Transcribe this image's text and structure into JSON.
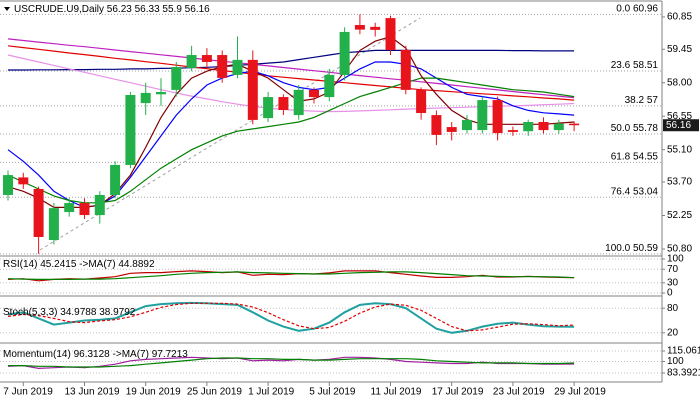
{
  "chart_data": [
    {
      "type": "candlestick",
      "title": "USCRUDE.U9,Daily",
      "categories": [
        null,
        "7 Jun 2019",
        null,
        null,
        null,
        "13 Jun 2019",
        null,
        null,
        null,
        "19 Jun 2019",
        null,
        null,
        null,
        "25 Jun 2019",
        null,
        null,
        null,
        "1 Jul 2019",
        null,
        null,
        null,
        "5 Jul 2019",
        null,
        null,
        null,
        "11 Jul 2019",
        null,
        null,
        null,
        "17 Jul 2019",
        null,
        null,
        null,
        "23 Jul 2019",
        null,
        null,
        null,
        "29 Jul 2019"
      ],
      "open": [
        53.14,
        53.9,
        53.4,
        51.19,
        52.4,
        52.79,
        52.27,
        53.14,
        54.44,
        57.12,
        57.5,
        57.69,
        58.64,
        59.2,
        59.2,
        58.34,
        58.99,
        56.47,
        57.38,
        56.6,
        57.69,
        57.38,
        58.34,
        60.5,
        60.42,
        60.8,
        59.42,
        57.69,
        56.6,
        56.08,
        55.95,
        55.95,
        57.25,
        55.95,
        55.9,
        56.3,
        55.95,
        56.23
      ],
      "high": [
        54.2,
        54.1,
        53.5,
        52.8,
        53.0,
        53.0,
        53.3,
        54.6,
        57.6,
        58.0,
        58.2,
        58.9,
        59.6,
        59.5,
        59.4,
        60.0,
        59.4,
        57.6,
        57.5,
        57.9,
        57.8,
        58.6,
        60.4,
        60.96,
        60.6,
        60.9,
        59.6,
        57.8,
        56.8,
        56.3,
        56.6,
        57.4,
        57.4,
        56.1,
        56.4,
        56.5,
        56.4,
        56.33
      ],
      "low": [
        52.9,
        53.4,
        50.59,
        51.0,
        52.2,
        52.1,
        51.9,
        53.0,
        54.3,
        56.6,
        57.0,
        57.4,
        58.5,
        58.6,
        58.0,
        58.2,
        56.2,
        56.3,
        56.6,
        56.4,
        57.1,
        57.2,
        58.1,
        60.1,
        60.0,
        59.2,
        57.5,
        56.4,
        55.3,
        55.5,
        55.8,
        55.8,
        55.5,
        55.7,
        55.7,
        55.8,
        55.8,
        55.9
      ],
      "close": [
        54.0,
        53.6,
        51.32,
        52.57,
        52.79,
        52.27,
        53.14,
        54.44,
        57.47,
        57.56,
        57.6,
        58.68,
        59.2,
        58.9,
        58.21,
        58.99,
        56.39,
        57.38,
        56.82,
        57.69,
        57.38,
        58.34,
        60.2,
        60.3,
        60.29,
        59.42,
        57.69,
        56.69,
        55.74,
        55.87,
        56.39,
        57.25,
        55.82,
        55.87,
        56.3,
        55.95,
        56.23,
        56.16
      ],
      "up_color": "#22b04a",
      "down_color": "#e8141b",
      "series": [
        {
          "color": "#000080",
          "values": [
            58.55,
            58.55,
            58.56,
            58.56,
            58.57,
            58.57,
            58.58,
            58.58,
            58.6,
            58.6,
            58.62,
            58.63,
            58.65,
            58.67,
            58.7,
            58.75,
            58.8,
            58.85,
            58.9,
            59.0,
            59.1,
            59.2,
            59.3,
            59.35,
            59.4,
            59.4,
            59.4,
            59.4,
            59.4,
            59.4,
            59.4,
            59.4,
            59.4,
            59.39,
            59.39,
            59.38,
            59.38,
            59.38
          ]
        },
        {
          "color": "#e00000",
          "values": [
            59.6,
            59.52,
            59.45,
            59.37,
            59.29,
            59.22,
            59.14,
            59.06,
            58.99,
            58.91,
            58.84,
            58.76,
            58.68,
            58.61,
            58.53,
            58.45,
            58.38,
            58.3,
            58.24,
            58.18,
            58.12,
            58.06,
            58.0,
            57.94,
            57.88,
            57.82,
            57.76,
            57.7,
            57.66,
            57.61,
            57.57,
            57.52,
            57.48,
            57.43,
            57.39,
            57.34,
            57.3,
            57.25
          ]
        },
        {
          "color": "#c020c0",
          "values": [
            59.9,
            59.83,
            59.76,
            59.69,
            59.62,
            59.56,
            59.49,
            59.42,
            59.35,
            59.28,
            59.21,
            59.14,
            59.07,
            59.0,
            58.93,
            58.87,
            58.8,
            58.73,
            58.66,
            58.59,
            58.52,
            58.45,
            58.38,
            58.31,
            58.24,
            58.17,
            58.11,
            58.04,
            57.97,
            57.9,
            57.83,
            57.76,
            57.69,
            57.62,
            57.55,
            57.48,
            57.42,
            57.35
          ]
        },
        {
          "color": "#e890e8",
          "values": [
            59.2,
            59.05,
            58.9,
            58.75,
            58.6,
            58.45,
            58.3,
            58.15,
            58.0,
            57.85,
            57.7,
            57.55,
            57.42,
            57.3,
            57.18,
            57.07,
            56.98,
            56.9,
            56.84,
            56.8,
            56.77,
            56.75,
            56.76,
            56.78,
            56.8,
            56.83,
            56.86,
            56.88,
            56.9,
            56.92,
            56.94,
            56.96,
            56.98,
            57.0,
            57.02,
            57.05,
            57.07,
            57.1
          ]
        },
        {
          "color": "#0000ff",
          "values": [
            55.1,
            54.6,
            54.0,
            53.3,
            52.9,
            52.6,
            52.7,
            53.1,
            53.9,
            54.8,
            55.7,
            56.6,
            57.3,
            57.9,
            58.2,
            58.4,
            58.5,
            58.3,
            58.0,
            57.8,
            57.7,
            57.8,
            58.2,
            58.6,
            58.9,
            58.9,
            58.8,
            58.6,
            58.2,
            57.8,
            57.5,
            57.4,
            57.3,
            57.0,
            56.8,
            56.7,
            56.65,
            56.6
          ]
        },
        {
          "color": "#008000",
          "values": [
            54.0,
            53.7,
            53.4,
            53.1,
            52.9,
            52.8,
            52.8,
            52.9,
            53.3,
            53.8,
            54.3,
            54.7,
            55.1,
            55.4,
            55.7,
            55.9,
            56.0,
            56.1,
            56.2,
            56.3,
            56.5,
            56.8,
            57.1,
            57.4,
            57.6,
            57.8,
            58.0,
            58.2,
            58.2,
            58.1,
            58.0,
            57.9,
            57.8,
            57.7,
            57.65,
            57.6,
            57.5,
            57.4
          ]
        },
        {
          "color": "#800000",
          "values": [
            53.5,
            53.3,
            53.0,
            52.6,
            52.6,
            52.6,
            52.7,
            53.2,
            54.0,
            55.2,
            56.5,
            57.5,
            58.2,
            58.5,
            58.7,
            58.8,
            58.5,
            58.2,
            57.7,
            57.2,
            57.3,
            57.6,
            58.5,
            59.4,
            59.8,
            60.0,
            59.5,
            58.3,
            57.5,
            56.8,
            56.4,
            56.2,
            56.2,
            56.2,
            56.2,
            56.2,
            56.25,
            56.3
          ]
        }
      ],
      "ylim": [
        50.54,
        61.41
      ],
      "yticks": [
        60.85,
        59.45,
        {
          "value": 58,
          "label": "58.00"
        },
        56.55,
        {
          "value": 55.1,
          "label": "55.10"
        },
        {
          "value": 53.7,
          "label": "53.70"
        },
        52.25,
        {
          "value": 50.8,
          "label": "50.80"
        }
      ],
      "fib_color": "#a0a0a0",
      "fib_levels": [
        {
          "label": "0.0",
          "value": 60.96
        },
        {
          "label": "23.6",
          "value": 58.51
        },
        {
          "label": "38.2",
          "value": 57.0
        },
        {
          "label": "50.0",
          "value": 55.78
        },
        {
          "label": "61.8",
          "value": 54.55
        },
        {
          "label": "76.4",
          "value": 53.04
        },
        {
          "label": "100.0",
          "value": 50.59
        }
      ]
    },
    {
      "type": "line",
      "series": [
        {
          "name": "RSI(14)",
          "color": "#c00000",
          "values": [
            40,
            42,
            36,
            40,
            42,
            41,
            44,
            48,
            58,
            60,
            60,
            63,
            65,
            63,
            60,
            62,
            52,
            55,
            54,
            57,
            56,
            59,
            65,
            65,
            65,
            60,
            55,
            50,
            46,
            46,
            48,
            52,
            47,
            47,
            49,
            47,
            46,
            45.2415
          ]
        },
        {
          "name": "->MA(7)",
          "color": "#008000",
          "values": [
            42,
            41,
            40,
            40,
            40,
            41,
            41,
            42,
            45,
            48,
            51,
            55,
            58,
            60,
            61,
            62,
            60,
            59,
            58,
            57,
            56,
            56,
            58,
            60,
            61,
            62,
            62,
            60,
            57,
            54,
            51,
            50,
            49,
            48,
            48,
            48,
            47,
            44.8892
          ]
        }
      ],
      "ylim": [
        0,
        100
      ],
      "yticks": [
        0,
        30,
        70,
        100
      ]
    },
    {
      "type": "line",
      "series": [
        {
          "name": "Stoch(5,3,3)",
          "color": "#20a0a0",
          "values": [
            65,
            70,
            55,
            40,
            45,
            50,
            52,
            55,
            70,
            85,
            90,
            92,
            93,
            92,
            90,
            88,
            70,
            50,
            35,
            25,
            30,
            45,
            70,
            88,
            92,
            90,
            80,
            55,
            30,
            20,
            25,
            35,
            42,
            45,
            40,
            36,
            35,
            34.9788
          ]
        },
        {
          "color": "#e00000",
          "style": "dashed",
          "values": [
            60,
            65,
            62,
            55,
            47,
            45,
            49,
            52,
            59,
            70,
            82,
            89,
            92,
            92,
            92,
            90,
            83,
            69,
            52,
            37,
            30,
            33,
            48,
            68,
            83,
            90,
            87,
            75,
            55,
            35,
            25,
            27,
            34,
            41,
            42,
            40,
            37,
            38.9792
          ]
        }
      ],
      "ylim": [
        0,
        100
      ],
      "yticks": [
        20,
        80
      ]
    },
    {
      "type": "line",
      "series": [
        {
          "name": "Momentum(14)",
          "color": "#a020a0",
          "values": [
            93,
            94,
            90,
            91,
            92,
            91,
            93,
            96,
            101,
            103,
            104,
            105,
            106,
            105,
            104,
            105,
            101,
            102,
            101,
            103,
            102,
            103,
            106,
            106,
            105,
            103,
            100,
            99,
            98,
            97,
            97,
            99,
            97,
            97,
            97,
            96,
            96,
            96.3128
          ]
        },
        {
          "name": "->MA(7)",
          "color": "#008000",
          "values": [
            94,
            94,
            93,
            93,
            92,
            92,
            92,
            93,
            94,
            96,
            98,
            100,
            102,
            104,
            105,
            105,
            104,
            104,
            103,
            103,
            102,
            102,
            103,
            104,
            104,
            104,
            104,
            103,
            101,
            100,
            99,
            98,
            98,
            98,
            97,
            97,
            97,
            97.7213
          ]
        }
      ],
      "ylim": [
        83.3921,
        115.0618
      ],
      "yticks": [
        83.3921,
        100,
        115.0618
      ]
    }
  ]
}
